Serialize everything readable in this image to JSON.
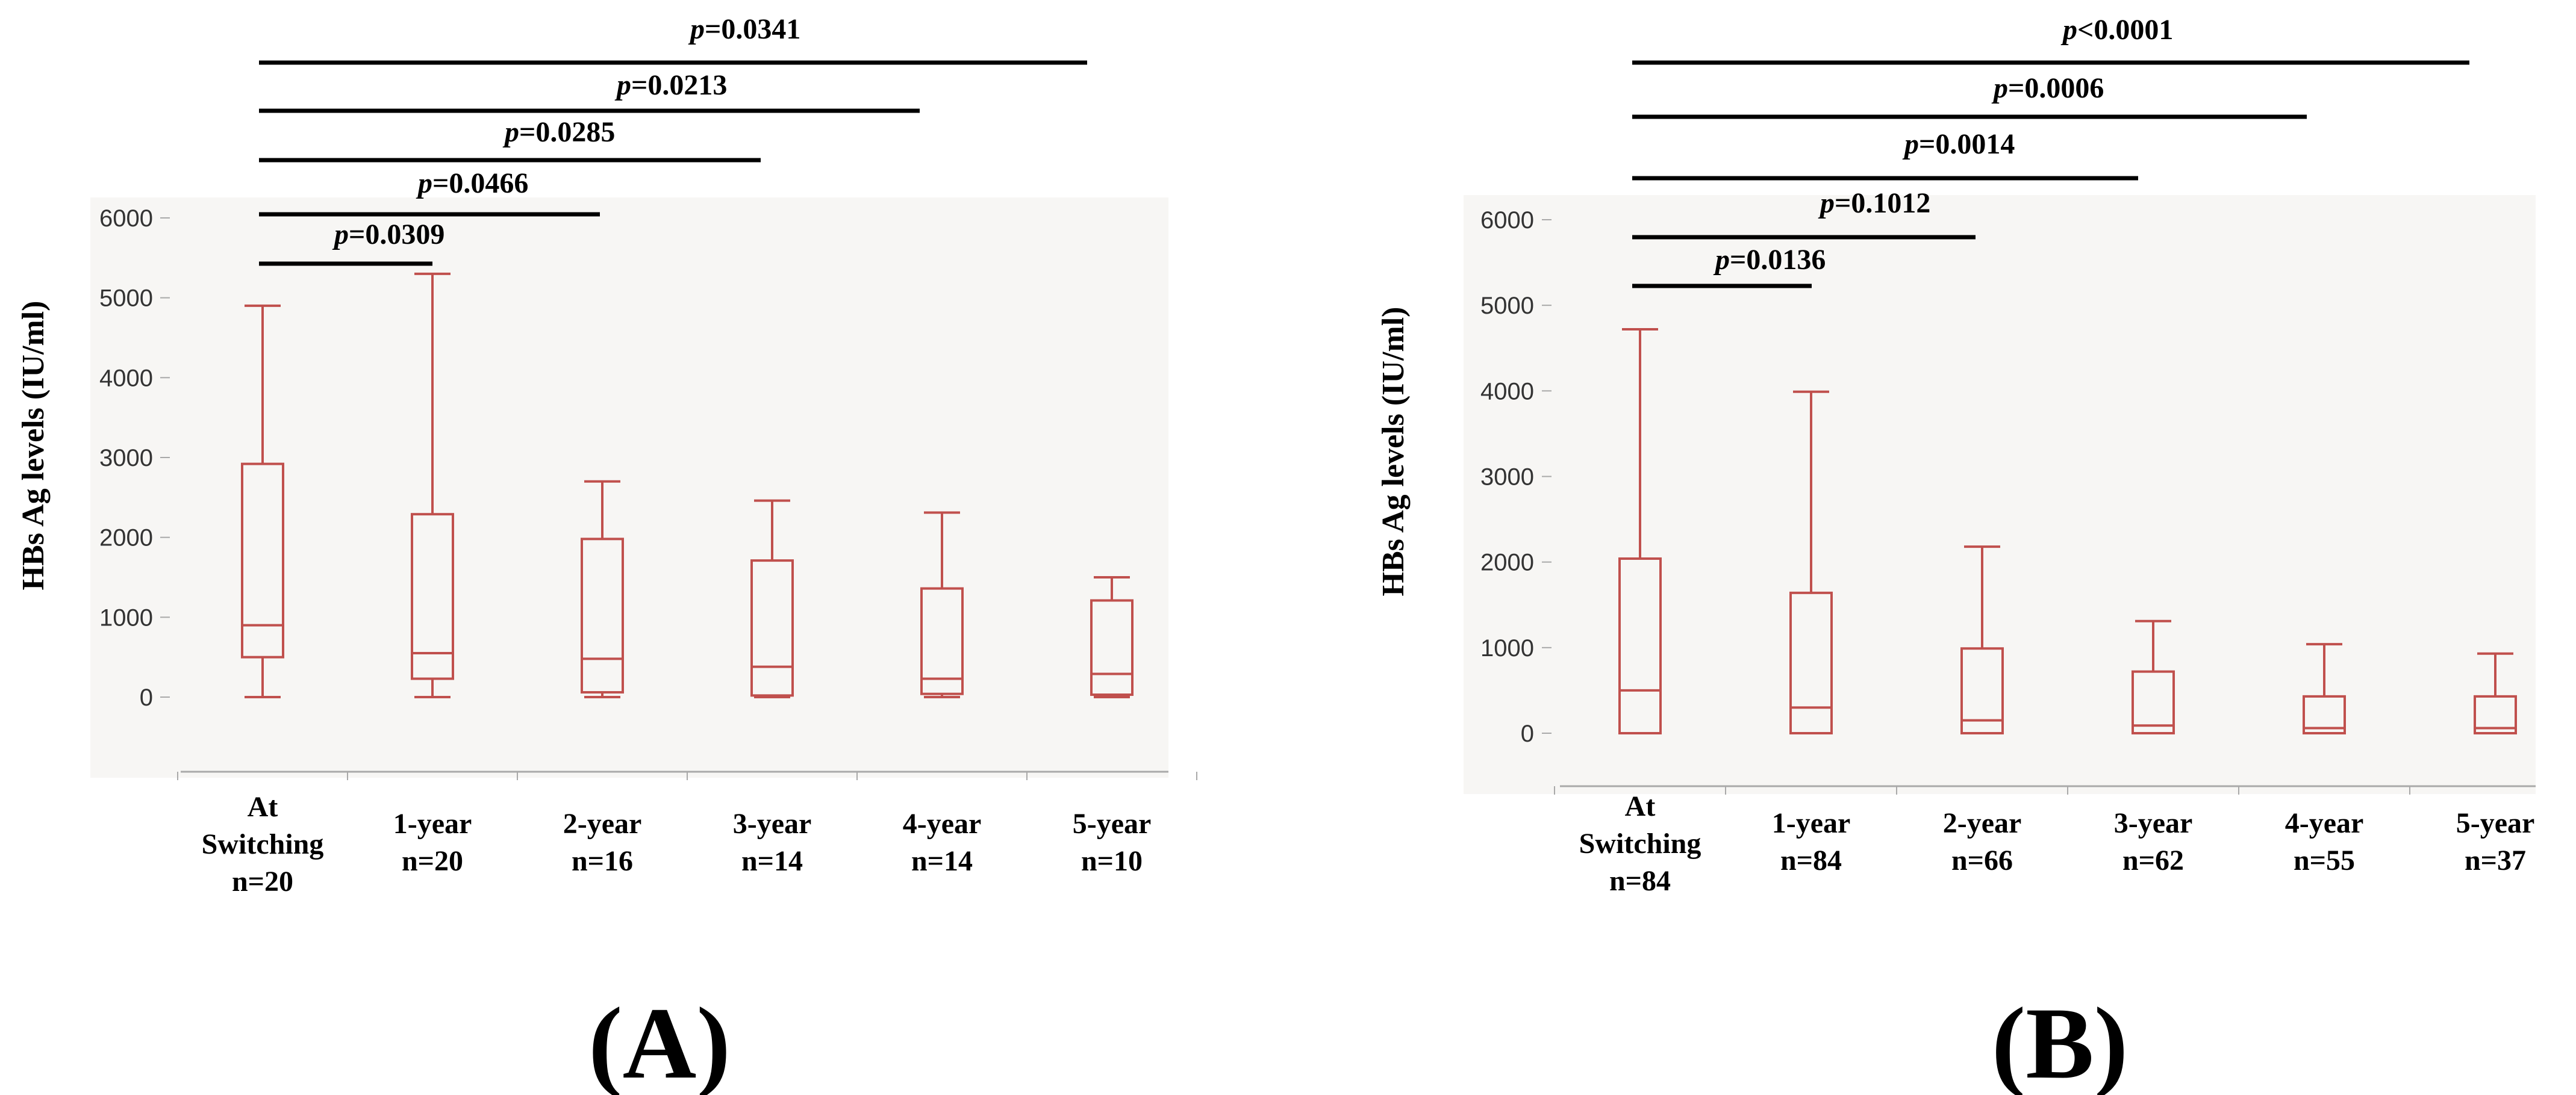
{
  "colors": {
    "box": "#c0504d",
    "plot_background": "#f7f6f4",
    "axis": "#a9a9a9",
    "text": "#000000"
  },
  "chart_data": [
    {
      "type": "box",
      "panel_label": "(A)",
      "ylabel": "HBs Ag levels (IU/ml)",
      "ylim": [
        -950,
        6000
      ],
      "yticks": [
        0,
        1000,
        2000,
        3000,
        4000,
        5000,
        6000
      ],
      "categories": [
        {
          "line1": "At",
          "line2": "Switching",
          "line3": "n=20"
        },
        {
          "line1": "1-year",
          "line2": "n=20"
        },
        {
          "line1": "2-year",
          "line2": "n=16"
        },
        {
          "line1": "3-year",
          "line2": "n=14"
        },
        {
          "line1": "4-year",
          "line2": "n=14"
        },
        {
          "line1": "5-year",
          "line2": "n=10"
        }
      ],
      "boxes": [
        {
          "min": 0,
          "q1": 500,
          "median": 900,
          "q3": 2920,
          "max": 4900
        },
        {
          "min": 0,
          "q1": 230,
          "median": 550,
          "q3": 2290,
          "max": 5300
        },
        {
          "min": 0,
          "q1": 60,
          "median": 480,
          "q3": 1980,
          "max": 2700
        },
        {
          "min": 0,
          "q1": 20,
          "median": 380,
          "q3": 1710,
          "max": 2460
        },
        {
          "min": 0,
          "q1": 40,
          "median": 230,
          "q3": 1360,
          "max": 2310
        },
        {
          "min": 0,
          "q1": 30,
          "median": 290,
          "q3": 1210,
          "max": 1500
        }
      ],
      "comparisons": [
        {
          "to": 1,
          "p_prefix": "p",
          "p_text": "=0.0309"
        },
        {
          "to": 2,
          "p_prefix": "p",
          "p_text": "=0.0466"
        },
        {
          "to": 3,
          "p_prefix": "p",
          "p_text": "=0.0285"
        },
        {
          "to": 4,
          "p_prefix": "p",
          "p_text": "=0.0213"
        },
        {
          "to": 5,
          "p_prefix": "p",
          "p_text": "=0.0341"
        }
      ]
    },
    {
      "type": "box",
      "panel_label": "(B)",
      "ylabel": "HBs Ag levels (IU/ml)",
      "ylim": [
        -620,
        6000
      ],
      "yticks": [
        0,
        1000,
        2000,
        3000,
        4000,
        5000,
        6000
      ],
      "categories": [
        {
          "line1": "At",
          "line2": "Switching",
          "line3": "n=84"
        },
        {
          "line1": "1-year",
          "line2": "n=84"
        },
        {
          "line1": "2-year",
          "line2": "n=66"
        },
        {
          "line1": "3-year",
          "line2": "n=62"
        },
        {
          "line1": "4-year",
          "line2": "n=55"
        },
        {
          "line1": "5-year",
          "line2": "n=37"
        }
      ],
      "boxes": [
        {
          "min": 0,
          "q1": 0,
          "median": 500,
          "q3": 2040,
          "max": 4720
        },
        {
          "min": 0,
          "q1": 0,
          "median": 300,
          "q3": 1640,
          "max": 3990
        },
        {
          "min": 0,
          "q1": 0,
          "median": 150,
          "q3": 990,
          "max": 2180
        },
        {
          "min": 0,
          "q1": 0,
          "median": 90,
          "q3": 720,
          "max": 1310
        },
        {
          "min": 0,
          "q1": 0,
          "median": 60,
          "q3": 430,
          "max": 1040
        },
        {
          "min": 0,
          "q1": 0,
          "median": 60,
          "q3": 430,
          "max": 930
        }
      ],
      "comparisons": [
        {
          "to": 1,
          "p_prefix": "p",
          "p_text": "=0.0136"
        },
        {
          "to": 2,
          "p_prefix": "p",
          "p_text": "=0.1012"
        },
        {
          "to": 3,
          "p_prefix": "p",
          "p_text": "=0.0014"
        },
        {
          "to": 4,
          "p_prefix": "p",
          "p_text": "=0.0006"
        },
        {
          "to": 5,
          "p_prefix": "p",
          "p_text": "<0.0001"
        }
      ]
    }
  ]
}
